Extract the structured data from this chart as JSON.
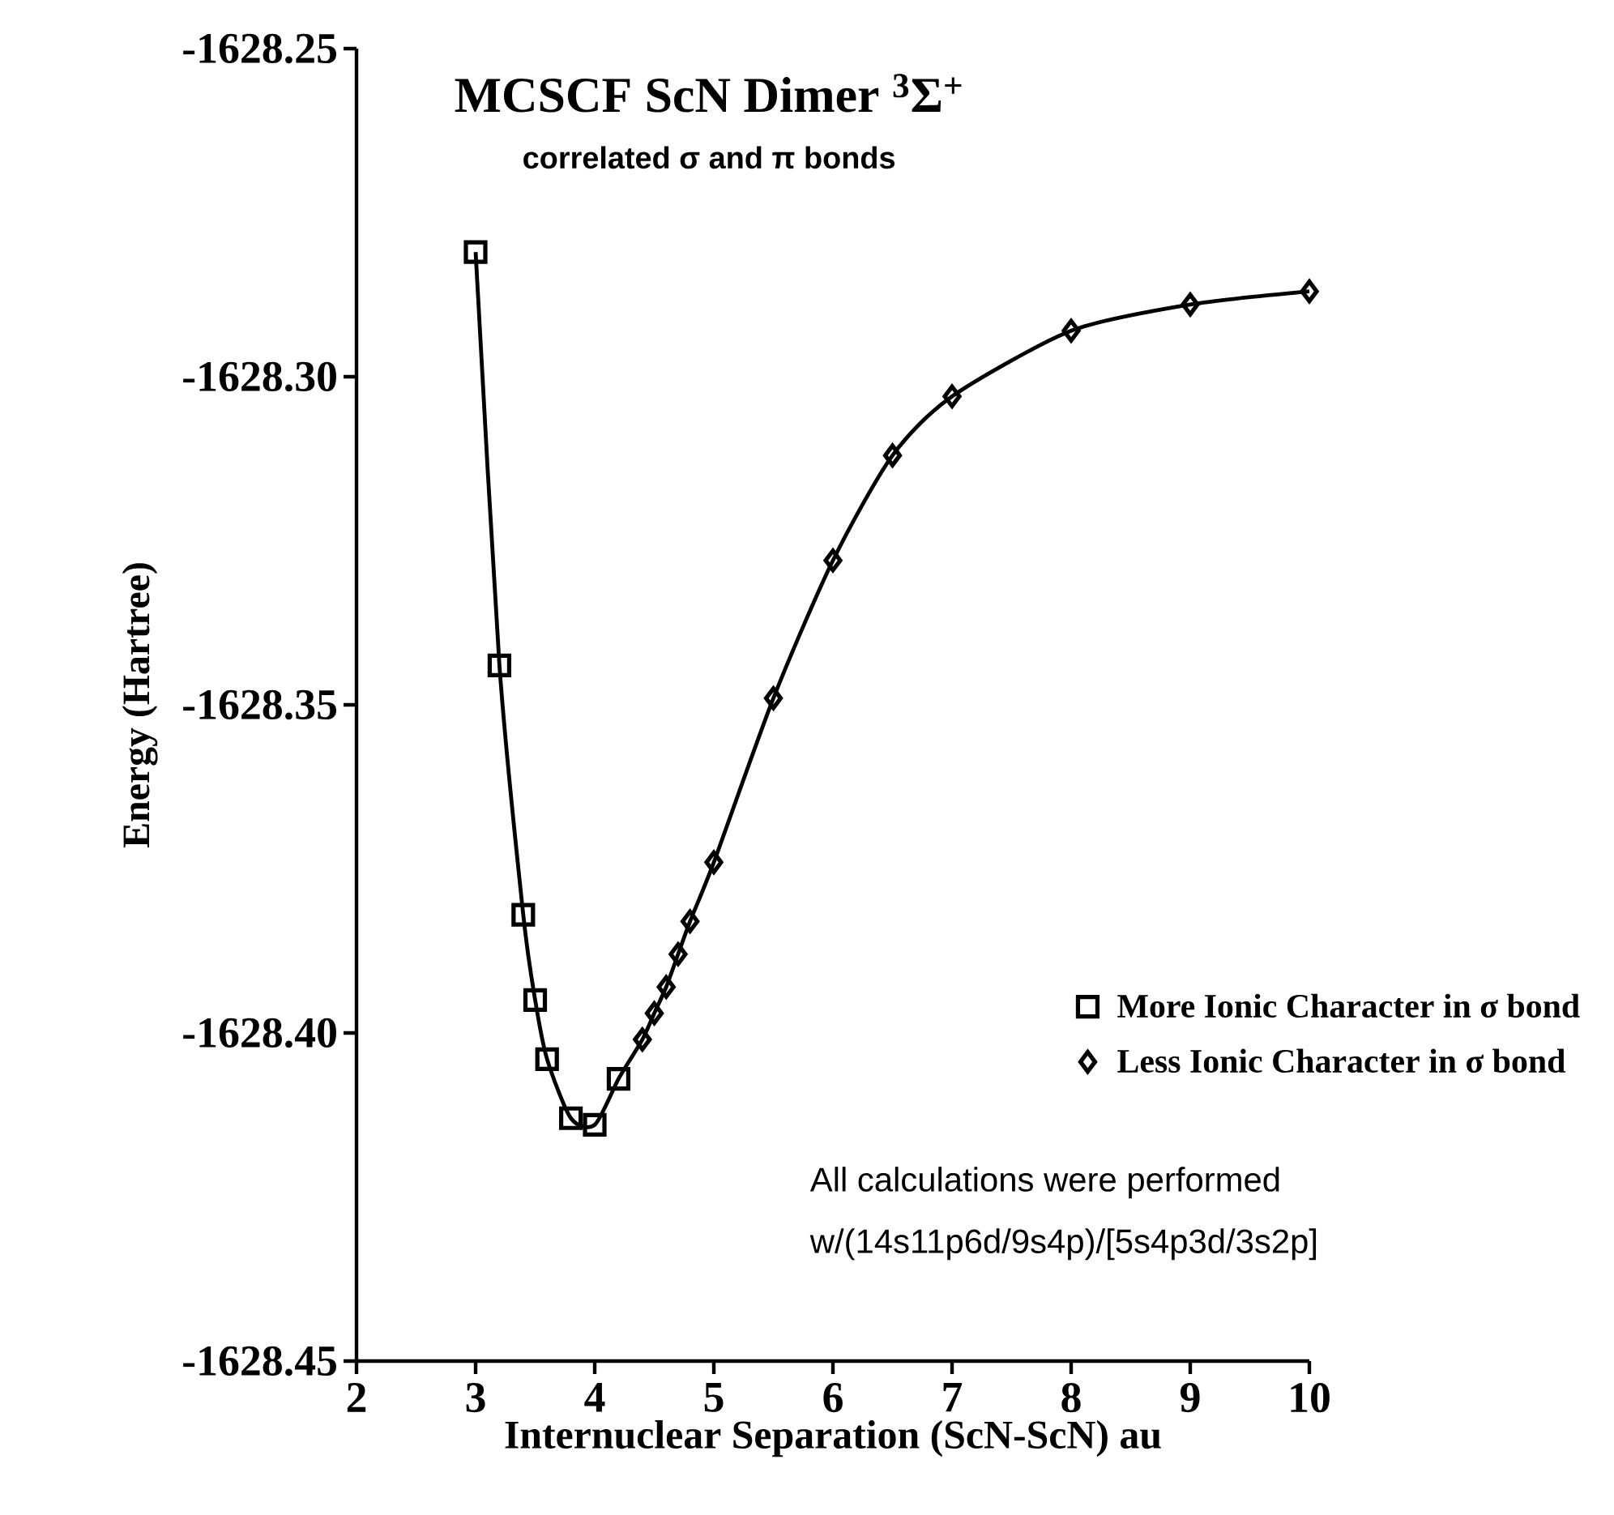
{
  "chart_data": {
    "type": "scatter",
    "title": "MCSCF ScN Dimer $^{3}$Σ$^{+}$",
    "subtitle": "correlated σ and π bonds",
    "xlabel": "Internuclear Separation (ScN-ScN) au",
    "ylabel": "Energy (Hartree)",
    "xlim": [
      2,
      10
    ],
    "xticks": [
      2,
      3,
      4,
      5,
      6,
      7,
      8,
      9,
      10
    ],
    "ylim": [
      -1628.45,
      -1628.25
    ],
    "yticks": [
      -1628.45,
      {
        "value": -1628.4,
        "label": "-1628.40"
      },
      -1628.35,
      {
        "value": -1628.3,
        "label": "-1628.30"
      },
      -1628.25
    ],
    "grid": false,
    "legend": "right",
    "annotations": [
      "All calculations were performed",
      "w/(14s11p6d/9s4p)/[5s4p3d/3s2p]"
    ],
    "series": [
      {
        "name": "More Ionic Character in σ bond",
        "marker": "square",
        "color": "#000000",
        "x": [
          3.0,
          3.2,
          3.4,
          3.5,
          3.6,
          3.8,
          4.0,
          4.2
        ],
        "values": [
          -1628.281,
          -1628.344,
          -1628.382,
          -1628.395,
          -1628.404,
          -1628.413,
          -1628.414,
          -1628.407
        ]
      },
      {
        "name": "Less Ionic Character in σ bond",
        "marker": "diamond",
        "color": "#000000",
        "x": [
          4.4,
          4.5,
          4.6,
          4.7,
          4.8,
          5.0,
          5.5,
          6.0,
          6.5,
          7.0,
          8.0,
          9.0,
          10.0
        ],
        "values": [
          -1628.401,
          -1628.397,
          -1628.393,
          -1628.388,
          -1628.383,
          -1628.374,
          -1628.349,
          -1628.328,
          -1628.312,
          -1628.303,
          -1628.293,
          -1628.289,
          -1628.287
        ]
      },
      {
        "type": "line",
        "marker": "none",
        "line_style": "solid",
        "color": "#000000",
        "x": [
          3.0,
          3.2,
          3.4,
          3.5,
          3.6,
          3.8,
          4.0,
          4.2,
          4.4,
          4.5,
          4.6,
          4.7,
          4.8,
          5.0,
          5.5,
          6.0,
          6.5,
          7.0,
          8.0,
          9.0,
          10.0
        ],
        "values": [
          -1628.281,
          -1628.344,
          -1628.382,
          -1628.395,
          -1628.404,
          -1628.413,
          -1628.414,
          -1628.407,
          -1628.401,
          -1628.397,
          -1628.393,
          -1628.388,
          -1628.383,
          -1628.374,
          -1628.349,
          -1628.328,
          -1628.312,
          -1628.303,
          -1628.293,
          -1628.289,
          -1628.287
        ]
      }
    ]
  }
}
